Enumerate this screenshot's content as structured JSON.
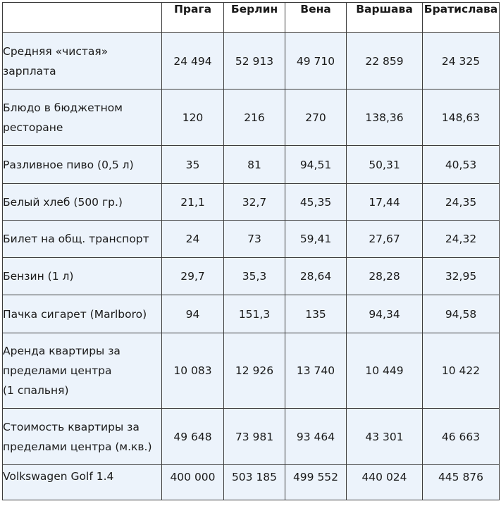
{
  "table": {
    "columns": [
      "",
      "Прага",
      "Берлин",
      "Вена",
      "Варшава",
      "Братислава"
    ],
    "rows": [
      {
        "label": "Средняя «чистая»\nзарплата",
        "values": [
          "24 494",
          "52 913",
          "49 710",
          "22 859",
          "24 325"
        ]
      },
      {
        "label": "Блюдо в бюджетном\nресторане",
        "values": [
          "120",
          "216",
          "270",
          "138,36",
          "148,63"
        ]
      },
      {
        "label": "Разливное пиво (0,5 л)",
        "values": [
          "35",
          "81",
          "94,51",
          "50,31",
          "40,53"
        ]
      },
      {
        "label": "Белый хлеб (500 гр.)",
        "values": [
          "21,1",
          "32,7",
          "45,35",
          "17,44",
          "24,35"
        ]
      },
      {
        "label": "Билет на общ. транспорт",
        "values": [
          "24",
          "73",
          "59,41",
          "27,67",
          "24,32"
        ]
      },
      {
        "label": "Бензин (1 л)",
        "values": [
          "29,7",
          "35,3",
          "28,64",
          "28,28",
          "32,95"
        ]
      },
      {
        "label": "Пачка сигарет (Marlboro)",
        "values": [
          "94",
          "151,3",
          "135",
          "94,34",
          "94,58"
        ]
      },
      {
        "label": "Аренда квартиры за\nпределами центра\n(1 спальня)",
        "values": [
          "10 083",
          "12 926",
          "13 740",
          "10 449",
          "10 422"
        ]
      },
      {
        "label": "Стоимость квартиры за\nпределами центра (м.кв.)",
        "values": [
          "49 648",
          "73 981",
          "93 464",
          "43 301",
          "46 663"
        ]
      },
      {
        "label": "Volkswagen Golf 1.4",
        "values": [
          "400 000",
          "503 185",
          "499 552",
          "440 024",
          "445 876"
        ]
      }
    ]
  }
}
